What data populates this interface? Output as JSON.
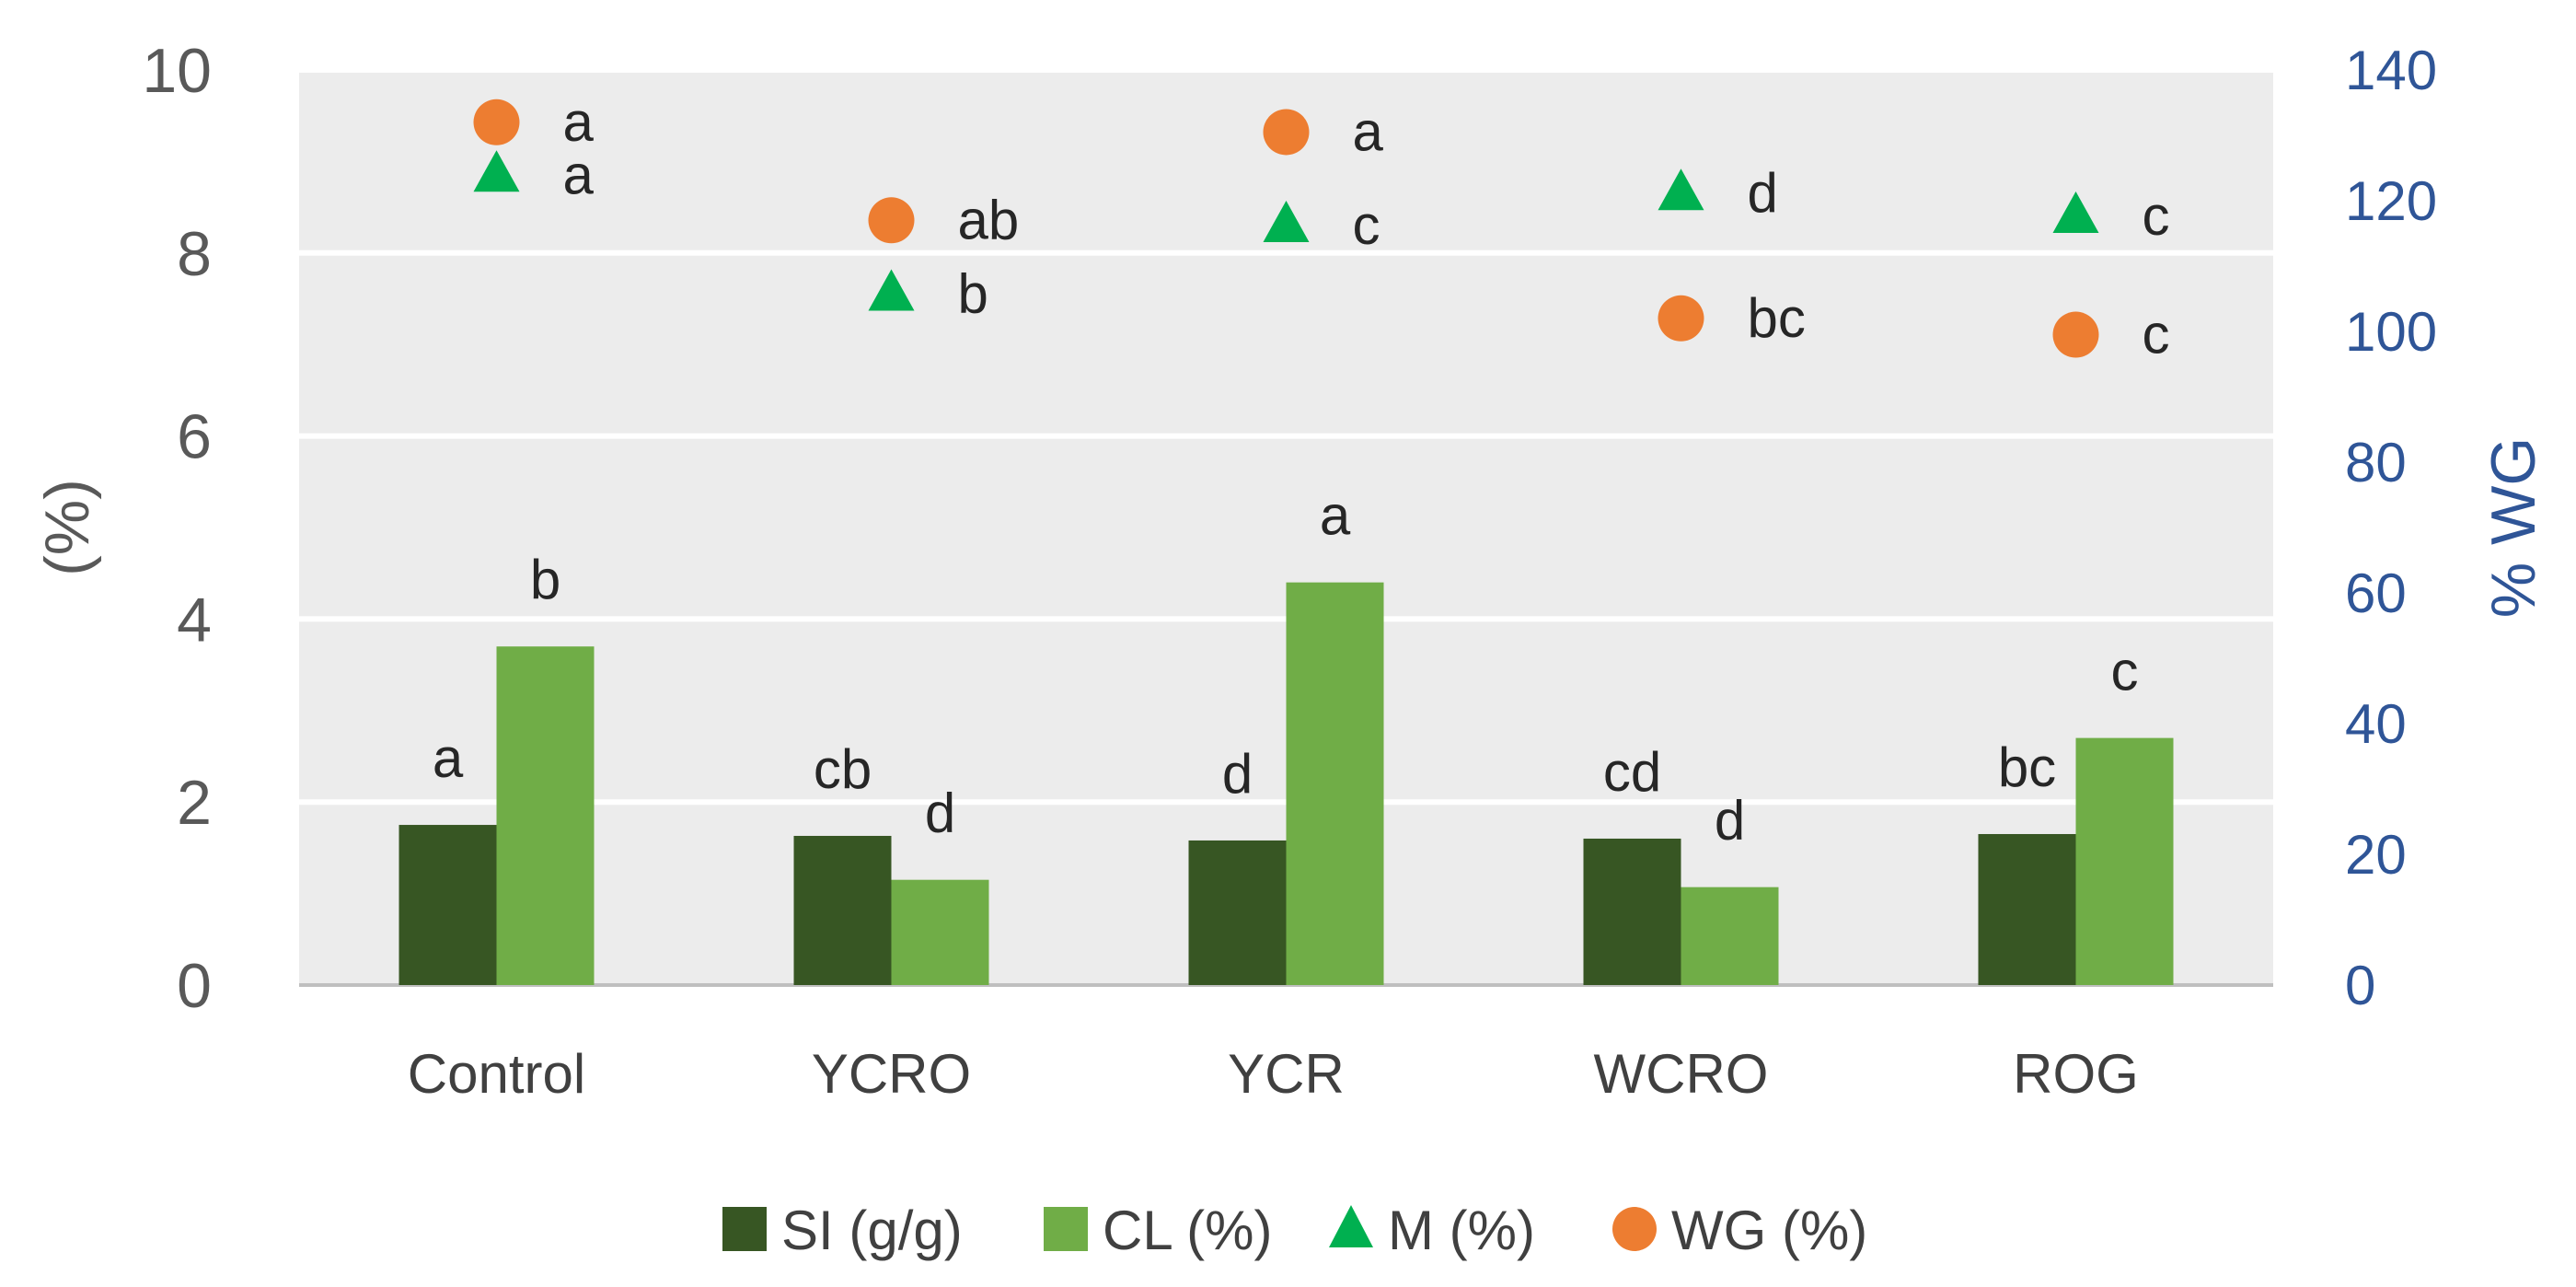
{
  "chart_data": {
    "type": "bar",
    "categories": [
      "Control",
      "YCRO",
      "YCR",
      "WCRO",
      "ROG"
    ],
    "ylabel": "(%)",
    "ylim": [
      0,
      10
    ],
    "yticks": [
      "0",
      "2",
      "4",
      "6",
      "8",
      "10"
    ],
    "y2label": "% WG",
    "y2lim": [
      0,
      140
    ],
    "y2ticks": [
      "0",
      "20",
      "40",
      "60",
      "80",
      "100",
      "120",
      "140"
    ],
    "grid": true,
    "legend_position": "bottom",
    "series": [
      {
        "name": "SI (g/g)",
        "kind": "bar",
        "axis": "left",
        "color": "#375623",
        "values": [
          1.75,
          1.63,
          1.58,
          1.6,
          1.65
        ],
        "letters": [
          "a",
          "cb",
          "d",
          "cd",
          "bc"
        ]
      },
      {
        "name": "CL (%)",
        "kind": "bar",
        "axis": "left",
        "color": "#70ad47",
        "values": [
          3.7,
          1.15,
          4.4,
          1.07,
          2.7
        ],
        "letters": [
          "b",
          "d",
          "a",
          "d",
          "c"
        ]
      },
      {
        "name": "M (%)",
        "kind": "triangle",
        "axis": "left",
        "color": "#00b050",
        "values": [
          8.85,
          7.55,
          8.3,
          8.65,
          8.4
        ],
        "letters": [
          "a",
          "b",
          "c",
          "d",
          "c"
        ]
      },
      {
        "name": "WG (%)",
        "kind": "circle",
        "axis": "right",
        "color": "#ed7d31",
        "values": [
          132,
          117,
          130.5,
          102,
          99.5
        ],
        "letters": [
          "a",
          "ab",
          "a",
          "bc",
          "c"
        ]
      }
    ]
  }
}
